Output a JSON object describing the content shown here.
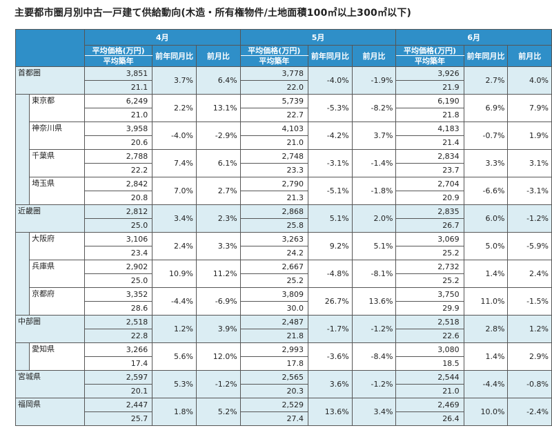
{
  "title": "主要都市圏月別中古一戸建て供給動向(木造・所有権物件/土地面積100㎡以上300㎡以下)",
  "months": [
    "4月",
    "5月",
    "6月"
  ],
  "headers": {
    "price": "平均価格(万円)",
    "age": "平均築年",
    "yoy": "前年同月比",
    "mom": "前月比"
  },
  "rows": [
    {
      "name": "首都圏",
      "level": 0,
      "last_in_group": false,
      "m": [
        {
          "price": "3,851",
          "age": "21.1",
          "yoy": "3.7%",
          "mom": "6.4%"
        },
        {
          "price": "3,778",
          "age": "22.0",
          "yoy": "-4.0%",
          "mom": "-1.9%"
        },
        {
          "price": "3,926",
          "age": "21.9",
          "yoy": "2.7%",
          "mom": "4.0%"
        }
      ]
    },
    {
      "name": "東京都",
      "level": 1,
      "last_in_group": false,
      "m": [
        {
          "price": "6,249",
          "age": "21.0",
          "yoy": "2.2%",
          "mom": "13.1%"
        },
        {
          "price": "5,739",
          "age": "22.7",
          "yoy": "-5.3%",
          "mom": "-8.2%"
        },
        {
          "price": "6,190",
          "age": "21.8",
          "yoy": "6.9%",
          "mom": "7.9%"
        }
      ]
    },
    {
      "name": "神奈川県",
      "level": 1,
      "last_in_group": false,
      "m": [
        {
          "price": "3,958",
          "age": "20.6",
          "yoy": "-4.0%",
          "mom": "-2.9%"
        },
        {
          "price": "4,103",
          "age": "21.0",
          "yoy": "-4.2%",
          "mom": "3.7%"
        },
        {
          "price": "4,183",
          "age": "21.4",
          "yoy": "-0.7%",
          "mom": "1.9%"
        }
      ]
    },
    {
      "name": "千葉県",
      "level": 1,
      "last_in_group": false,
      "m": [
        {
          "price": "2,788",
          "age": "22.2",
          "yoy": "7.4%",
          "mom": "6.1%"
        },
        {
          "price": "2,748",
          "age": "23.3",
          "yoy": "-3.1%",
          "mom": "-1.4%"
        },
        {
          "price": "2,834",
          "age": "23.7",
          "yoy": "3.3%",
          "mom": "3.1%"
        }
      ]
    },
    {
      "name": "埼玉県",
      "level": 1,
      "last_in_group": true,
      "m": [
        {
          "price": "2,842",
          "age": "20.8",
          "yoy": "7.0%",
          "mom": "2.7%"
        },
        {
          "price": "2,790",
          "age": "21.3",
          "yoy": "-5.1%",
          "mom": "-1.8%"
        },
        {
          "price": "2,704",
          "age": "20.9",
          "yoy": "-6.6%",
          "mom": "-3.1%"
        }
      ]
    },
    {
      "name": "近畿圏",
      "level": 0,
      "last_in_group": false,
      "m": [
        {
          "price": "2,812",
          "age": "25.0",
          "yoy": "3.4%",
          "mom": "2.3%"
        },
        {
          "price": "2,868",
          "age": "25.8",
          "yoy": "5.1%",
          "mom": "2.0%"
        },
        {
          "price": "2,835",
          "age": "26.7",
          "yoy": "6.0%",
          "mom": "-1.2%"
        }
      ]
    },
    {
      "name": "大阪府",
      "level": 1,
      "last_in_group": false,
      "m": [
        {
          "price": "3,106",
          "age": "23.4",
          "yoy": "2.4%",
          "mom": "3.3%"
        },
        {
          "price": "3,263",
          "age": "24.2",
          "yoy": "9.2%",
          "mom": "5.1%"
        },
        {
          "price": "3,069",
          "age": "25.2",
          "yoy": "5.0%",
          "mom": "-5.9%"
        }
      ]
    },
    {
      "name": "兵庫県",
      "level": 1,
      "last_in_group": false,
      "m": [
        {
          "price": "2,902",
          "age": "25.0",
          "yoy": "10.9%",
          "mom": "11.2%"
        },
        {
          "price": "2,667",
          "age": "25.2",
          "yoy": "-4.8%",
          "mom": "-8.1%"
        },
        {
          "price": "2,732",
          "age": "25.2",
          "yoy": "1.4%",
          "mom": "2.4%"
        }
      ]
    },
    {
      "name": "京都府",
      "level": 1,
      "last_in_group": true,
      "m": [
        {
          "price": "3,352",
          "age": "28.6",
          "yoy": "-4.4%",
          "mom": "-6.9%"
        },
        {
          "price": "3,809",
          "age": "30.0",
          "yoy": "26.7%",
          "mom": "13.6%"
        },
        {
          "price": "3,750",
          "age": "29.9",
          "yoy": "11.0%",
          "mom": "-1.5%"
        }
      ]
    },
    {
      "name": "中部圏",
      "level": 0,
      "last_in_group": false,
      "m": [
        {
          "price": "2,518",
          "age": "22.8",
          "yoy": "1.2%",
          "mom": "3.9%"
        },
        {
          "price": "2,487",
          "age": "21.8",
          "yoy": "-1.7%",
          "mom": "-1.2%"
        },
        {
          "price": "2,518",
          "age": "22.6",
          "yoy": "2.8%",
          "mom": "1.2%"
        }
      ]
    },
    {
      "name": "愛知県",
      "level": 1,
      "last_in_group": true,
      "m": [
        {
          "price": "3,266",
          "age": "17.4",
          "yoy": "5.6%",
          "mom": "12.0%"
        },
        {
          "price": "2,993",
          "age": "17.8",
          "yoy": "-3.6%",
          "mom": "-8.4%"
        },
        {
          "price": "3,080",
          "age": "18.5",
          "yoy": "1.4%",
          "mom": "2.9%"
        }
      ]
    },
    {
      "name": "宮城県",
      "level": 0,
      "last_in_group": true,
      "m": [
        {
          "price": "2,597",
          "age": "20.1",
          "yoy": "5.3%",
          "mom": "-1.2%"
        },
        {
          "price": "2,565",
          "age": "20.3",
          "yoy": "3.6%",
          "mom": "-1.2%"
        },
        {
          "price": "2,544",
          "age": "21.0",
          "yoy": "-4.4%",
          "mom": "-0.8%"
        }
      ]
    },
    {
      "name": "福岡県",
      "level": 0,
      "last_in_group": true,
      "m": [
        {
          "price": "2,447",
          "age": "25.7",
          "yoy": "1.8%",
          "mom": "5.2%"
        },
        {
          "price": "2,529",
          "age": "27.4",
          "yoy": "13.6%",
          "mom": "3.4%"
        },
        {
          "price": "2,469",
          "age": "26.4",
          "yoy": "10.0%",
          "mom": "-2.4%"
        }
      ]
    }
  ]
}
